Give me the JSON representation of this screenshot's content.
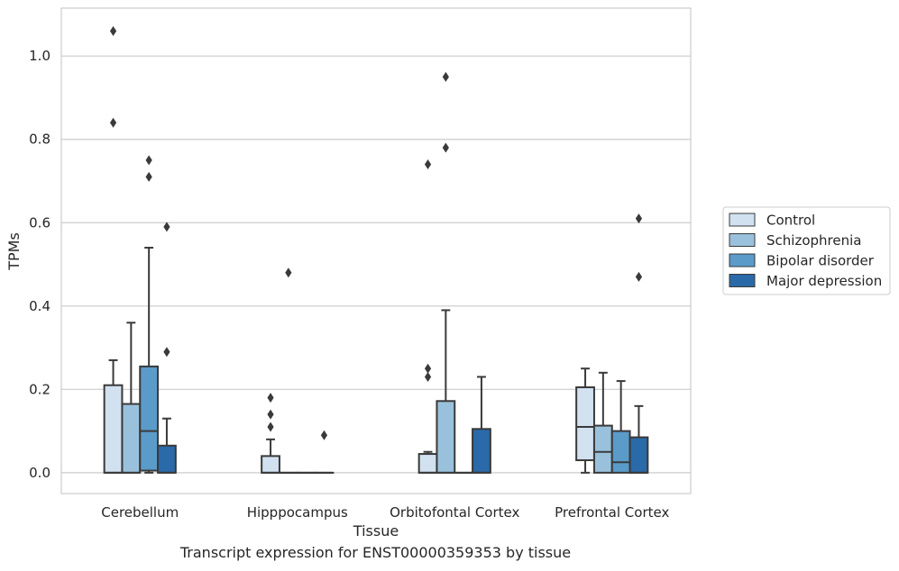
{
  "caption": "Transcript expression for ENST00000359353 by tissue",
  "chart_data": {
    "type": "box",
    "xlabel": "Tissue",
    "ylabel": "TPMs",
    "ylim": [
      -0.05,
      1.115
    ],
    "yticks": [
      0.0,
      0.2,
      0.4,
      0.6,
      0.8,
      1.0
    ],
    "ytick_labels": [
      "0.0",
      "0.2",
      "0.4",
      "0.6",
      "0.8",
      "1.0"
    ],
    "grid": true,
    "legend_position": "right",
    "categories": [
      "Cerebellum",
      "Hipppocampus",
      "Orbitofontal Cortex",
      "Prefrontal Cortex"
    ],
    "series": [
      {
        "name": "Control",
        "color": "#d2e1f0",
        "boxes": [
          {
            "q1": 0.0,
            "median": 0.0,
            "q3": 0.21,
            "whisker_low": 0.0,
            "whisker_high": 0.27,
            "outliers": [
              1.06,
              0.84
            ]
          },
          {
            "q1": 0.0,
            "median": 0.0,
            "q3": 0.04,
            "whisker_low": 0.0,
            "whisker_high": 0.08,
            "outliers": [
              0.18,
              0.14,
              0.11
            ]
          },
          {
            "q1": 0.0,
            "median": 0.0,
            "q3": 0.045,
            "whisker_low": 0.0,
            "whisker_high": 0.05,
            "outliers": [
              0.74,
              0.25,
              0.23
            ]
          },
          {
            "q1": 0.03,
            "median": 0.11,
            "q3": 0.205,
            "whisker_low": 0.0,
            "whisker_high": 0.25,
            "outliers": []
          }
        ]
      },
      {
        "name": "Schizophrenia",
        "color": "#9ac1dc",
        "boxes": [
          {
            "q1": 0.0,
            "median": 0.0,
            "q3": 0.165,
            "whisker_low": 0.0,
            "whisker_high": 0.36,
            "outliers": []
          },
          {
            "q1": 0.0,
            "median": 0.0,
            "q3": 0.0,
            "whisker_low": 0.0,
            "whisker_high": 0.0,
            "outliers": [
              0.48
            ]
          },
          {
            "q1": 0.0,
            "median": 0.0,
            "q3": 0.172,
            "whisker_low": 0.0,
            "whisker_high": 0.39,
            "outliers": [
              0.95,
              0.78
            ]
          },
          {
            "q1": 0.0,
            "median": 0.05,
            "q3": 0.113,
            "whisker_low": 0.0,
            "whisker_high": 0.24,
            "outliers": []
          }
        ]
      },
      {
        "name": "Bipolar disorder",
        "color": "#5a9bc9",
        "boxes": [
          {
            "q1": 0.005,
            "median": 0.1,
            "q3": 0.255,
            "whisker_low": 0.0,
            "whisker_high": 0.54,
            "outliers": [
              0.75,
              0.71
            ]
          },
          {
            "q1": 0.0,
            "median": 0.0,
            "q3": 0.0,
            "whisker_low": 0.0,
            "whisker_high": 0.0,
            "outliers": []
          },
          {
            "q1": 0.0,
            "median": 0.0,
            "q3": 0.0,
            "whisker_low": 0.0,
            "whisker_high": 0.0,
            "outliers": []
          },
          {
            "q1": 0.0,
            "median": 0.025,
            "q3": 0.1,
            "whisker_low": 0.0,
            "whisker_high": 0.22,
            "outliers": []
          }
        ]
      },
      {
        "name": "Major depression",
        "color": "#2a6aa8",
        "boxes": [
          {
            "q1": 0.0,
            "median": 0.0,
            "q3": 0.065,
            "whisker_low": 0.0,
            "whisker_high": 0.13,
            "outliers": [
              0.59,
              0.29
            ]
          },
          {
            "q1": 0.0,
            "median": 0.0,
            "q3": 0.0,
            "whisker_low": 0.0,
            "whisker_high": 0.0,
            "outliers": [
              0.09
            ]
          },
          {
            "q1": 0.0,
            "median": 0.0,
            "q3": 0.105,
            "whisker_low": 0.0,
            "whisker_high": 0.23,
            "outliers": []
          },
          {
            "q1": 0.0,
            "median": 0.0,
            "q3": 0.085,
            "whisker_low": 0.0,
            "whisker_high": 0.16,
            "outliers": [
              0.61,
              0.47
            ]
          }
        ]
      }
    ]
  }
}
